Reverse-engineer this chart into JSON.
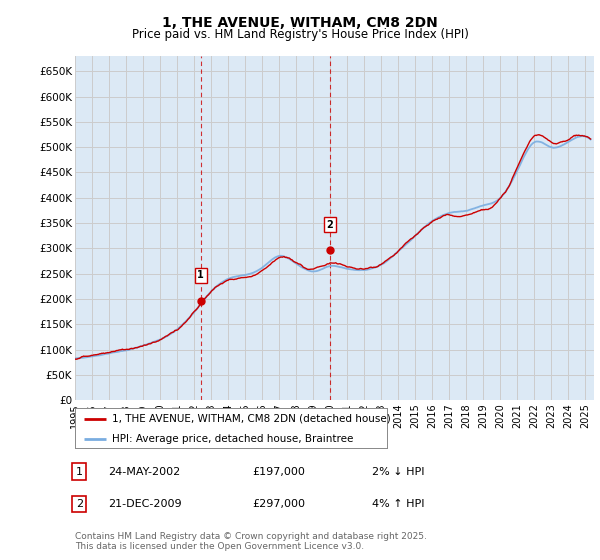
{
  "title": "1, THE AVENUE, WITHAM, CM8 2DN",
  "subtitle": "Price paid vs. HM Land Registry's House Price Index (HPI)",
  "xlim_start": 1995.0,
  "xlim_end": 2025.5,
  "ylim": [
    0,
    680000
  ],
  "yticks": [
    0,
    50000,
    100000,
    150000,
    200000,
    250000,
    300000,
    350000,
    400000,
    450000,
    500000,
    550000,
    600000,
    650000
  ],
  "ytick_labels": [
    "£0",
    "£50K",
    "£100K",
    "£150K",
    "£200K",
    "£250K",
    "£300K",
    "£350K",
    "£400K",
    "£450K",
    "£500K",
    "£550K",
    "£600K",
    "£650K"
  ],
  "grid_color": "#cccccc",
  "plot_bg": "#dce9f5",
  "red_color": "#cc0000",
  "blue_color": "#7aade0",
  "sale1_x": 2002.39,
  "sale1_y": 197000,
  "sale2_x": 2009.97,
  "sale2_y": 297000,
  "vline1_x": 2002.39,
  "vline2_x": 2009.97,
  "legend_line1": "1, THE AVENUE, WITHAM, CM8 2DN (detached house)",
  "legend_line2": "HPI: Average price, detached house, Braintree",
  "annotation1_num": "1",
  "annotation1_date": "24-MAY-2002",
  "annotation1_price": "£197,000",
  "annotation1_hpi": "2% ↓ HPI",
  "annotation2_num": "2",
  "annotation2_date": "21-DEC-2009",
  "annotation2_price": "£297,000",
  "annotation2_hpi": "4% ↑ HPI",
  "footer": "Contains HM Land Registry data © Crown copyright and database right 2025.\nThis data is licensed under the Open Government Licence v3.0.",
  "xticks": [
    1995,
    1996,
    1997,
    1998,
    1999,
    2000,
    2001,
    2002,
    2003,
    2004,
    2005,
    2006,
    2007,
    2008,
    2009,
    2010,
    2011,
    2012,
    2013,
    2014,
    2015,
    2016,
    2017,
    2018,
    2019,
    2020,
    2021,
    2022,
    2023,
    2024,
    2025
  ]
}
